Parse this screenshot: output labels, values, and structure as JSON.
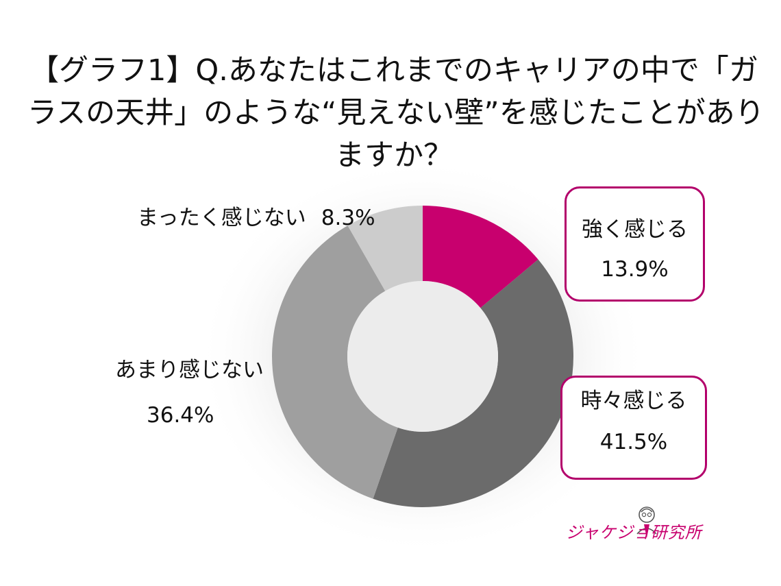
{
  "title": {
    "line1": "【グラフ1】Q.あなたはこれまでのキャリアの中で「ガ",
    "line2": "ラスの天井」のような“見えない壁”を感じたことがあり",
    "line3": "ますか？"
  },
  "colors": {
    "strong": "#c8006e",
    "sometimes": "#6b6b6b",
    "rarely": "#9f9f9f",
    "never": "#cccccc",
    "box_border": "#b3006b"
  },
  "chart_data": {
    "type": "pie",
    "style": "donut",
    "title": "【グラフ1】Q.あなたはこれまでのキャリアの中で「ガラスの天井」のような“見えない壁”を感じたことがありますか？",
    "slices": [
      {
        "label": "強く感じる",
        "value": 13.9,
        "display": "13.9%",
        "color": "#c8006e"
      },
      {
        "label": "時々感じる",
        "value": 41.5,
        "display": "41.5%",
        "color": "#6b6b6b"
      },
      {
        "label": "あまり感じない",
        "value": 36.4,
        "display": "36.4%",
        "color": "#9f9f9f"
      },
      {
        "label": "まったく感じない",
        "value": 8.3,
        "display": "8.3%",
        "color": "#cccccc"
      }
    ]
  },
  "logo": {
    "text": "ジャケジョ研究所",
    "icon": "person-portrait-icon"
  }
}
